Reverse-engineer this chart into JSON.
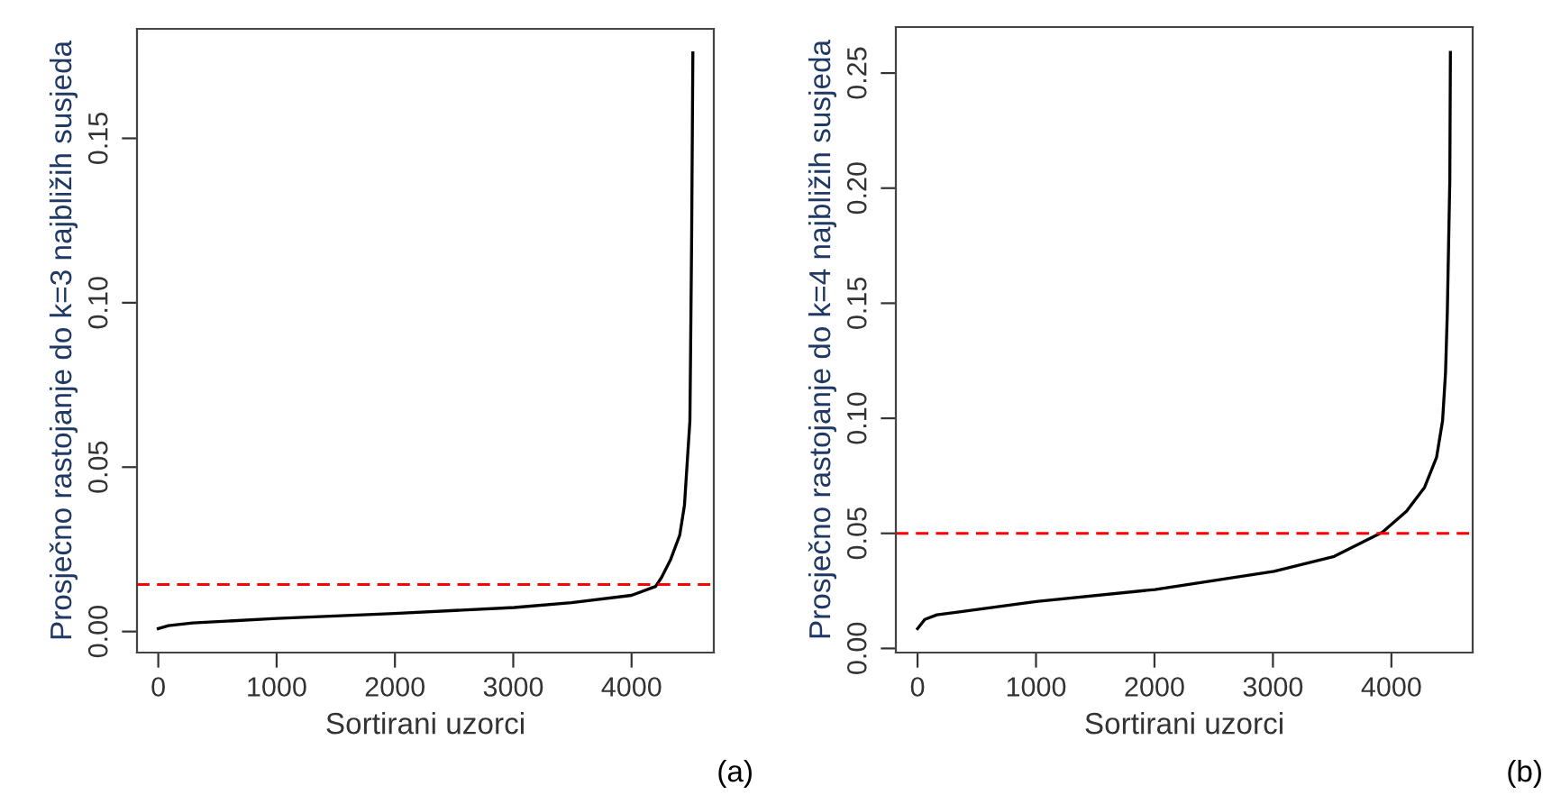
{
  "chart_data": [
    {
      "type": "line",
      "xlabel": "Sortirani uzorci",
      "ylabel": "Prosječno rastojanje do k=3 najbližih susjeda",
      "annotations": [
        "(a)"
      ],
      "x": [
        0,
        86,
        290,
        1001,
        1997,
        3009,
        3492,
        4000,
        4203,
        4254,
        4331,
        4407,
        4447,
        4473,
        4493,
        4498,
        4508,
        4518
      ],
      "series": [
        {
          "color": "#000000",
          "values": [
            0.0009,
            0.0018,
            0.0026,
            0.004,
            0.0055,
            0.0073,
            0.0088,
            0.011,
            0.0137,
            0.0165,
            0.022,
            0.0293,
            0.0384,
            0.053,
            0.064,
            0.082,
            0.121,
            0.176
          ]
        }
      ],
      "xlim": [
        -180,
        4695
      ],
      "ylim": [
        -0.0064,
        0.1833
      ],
      "xticks": [
        0,
        1000,
        2000,
        3000,
        4000
      ],
      "yticks": [
        {
          "value": 0,
          "label": "0.00"
        },
        {
          "value": 0.05,
          "label": "0.05"
        },
        {
          "value": 0.1,
          "label": "0.10"
        },
        {
          "value": 0.15,
          "label": "0.15"
        }
      ],
      "ref_lines": [
        {
          "axis": "y",
          "value": 0.0143,
          "color": "#ff0000",
          "line_style": "dashed"
        }
      ],
      "grid": false,
      "legend": false
    },
    {
      "type": "line",
      "xlabel": "Sortirani uzorci",
      "ylabel": "Prosječno rastojanje do k=4 najbližih susjeda",
      "annotations": [
        "(b)"
      ],
      "x": [
        0,
        61,
        163,
        366,
        1001,
        2003,
        3009,
        3517,
        3924,
        4127,
        4280,
        4381,
        4432,
        4457,
        4472,
        4493,
        4498
      ],
      "series": [
        {
          "color": "#000000",
          "values": [
            0.0086,
            0.0126,
            0.0146,
            0.016,
            0.0204,
            0.0256,
            0.0335,
            0.04,
            0.0505,
            0.0596,
            0.07,
            0.083,
            0.099,
            0.12,
            0.146,
            0.2035,
            0.259
          ]
        }
      ],
      "xlim": [
        -183,
        4686
      ],
      "ylim": [
        -0.0018,
        0.27
      ],
      "xticks": [
        0,
        1000,
        2000,
        3000,
        4000
      ],
      "yticks": [
        {
          "value": 0,
          "label": "0.00"
        },
        {
          "value": 0.05,
          "label": "0.05"
        },
        {
          "value": 0.1,
          "label": "0.10"
        },
        {
          "value": 0.15,
          "label": "0.15"
        },
        {
          "value": 0.2,
          "label": "0.20"
        },
        {
          "value": 0.25,
          "label": "0.25"
        }
      ],
      "ref_lines": [
        {
          "axis": "y",
          "value": 0.05,
          "color": "#ff0000",
          "line_style": "dashed"
        }
      ],
      "grid": false,
      "legend": false
    }
  ]
}
